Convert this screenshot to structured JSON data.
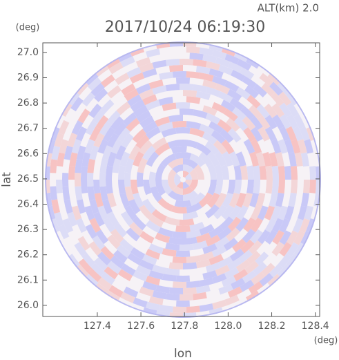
{
  "chart_data": {
    "type": "radar-ppi",
    "title": "2017/10/24 06:19:30",
    "altitude_label": "ALT(km) 2.0",
    "y_unit": "(deg)",
    "x_unit": "(deg)",
    "ylabel": "lat",
    "xlabel": "lon",
    "xlim": [
      127.15,
      128.42
    ],
    "ylim": [
      25.956,
      27.038
    ],
    "xticks": [
      127.4,
      127.6,
      127.8,
      {
        "value": 128,
        "label": "128.0"
      },
      128.2,
      128.4
    ],
    "yticks": [
      {
        "value": 26,
        "label": "26.0"
      },
      26.1,
      26.2,
      26.3,
      26.4,
      26.5,
      26.6,
      26.7,
      26.8,
      26.9,
      {
        "value": 27,
        "label": "27.0"
      }
    ]
  }
}
